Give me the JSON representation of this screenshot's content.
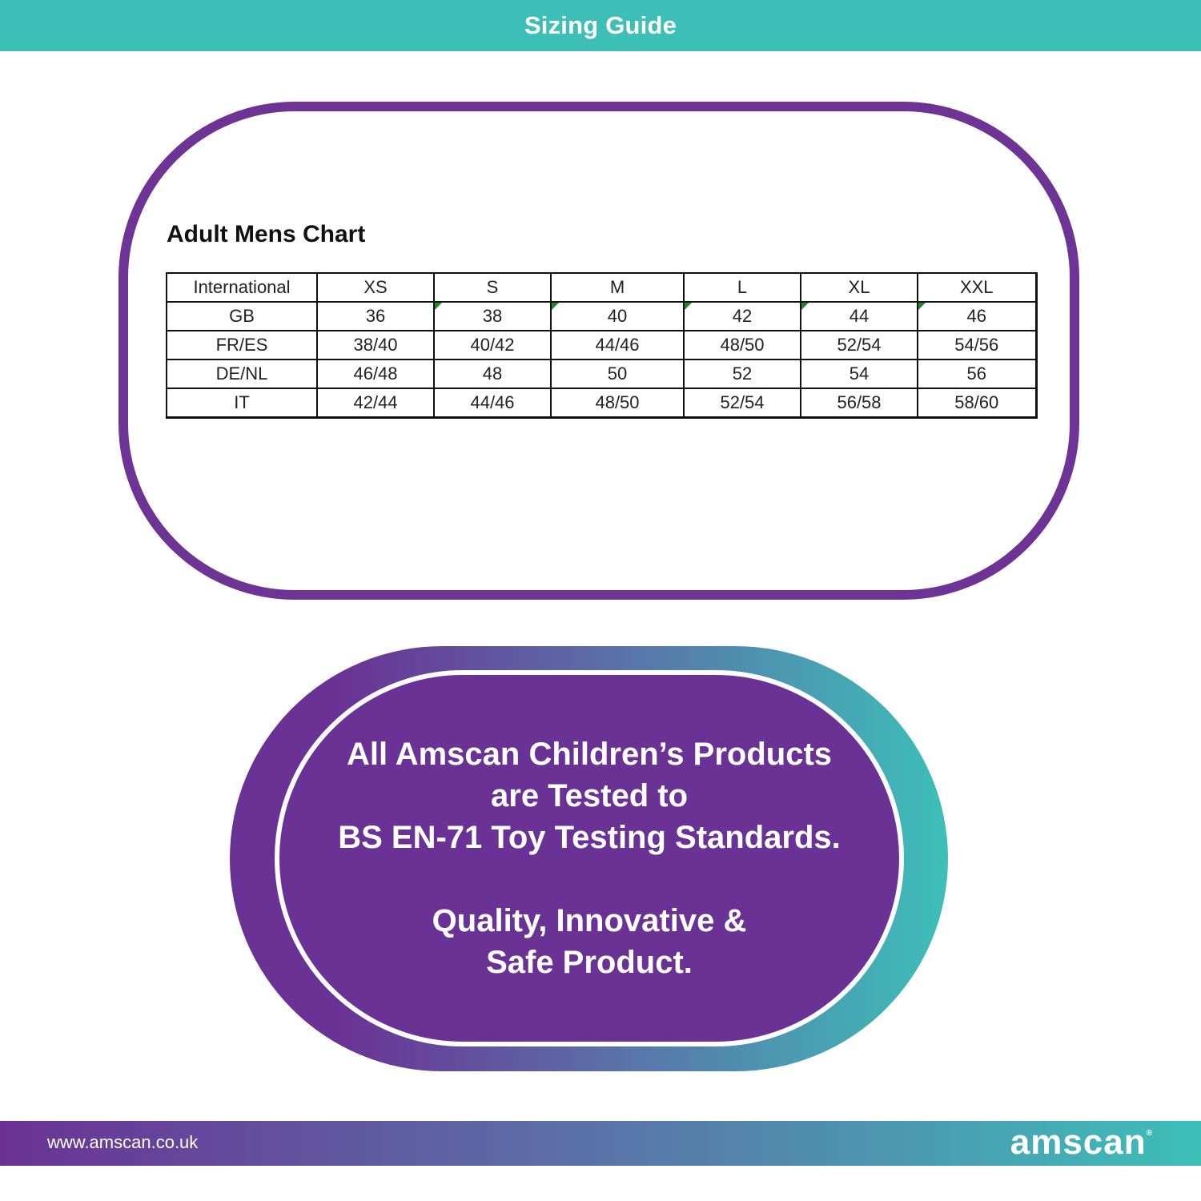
{
  "header": {
    "title": "Sizing Guide"
  },
  "chart": {
    "title": "Adult Mens Chart",
    "header_row": [
      "International",
      "XS",
      "S",
      "M",
      "L",
      "XL",
      "XXL"
    ],
    "rows": [
      [
        "GB",
        "36",
        "38",
        "40",
        "42",
        "44",
        "46"
      ],
      [
        "FR/ES",
        "38/40",
        "40/42",
        "44/46",
        "48/50",
        "52/54",
        "54/56"
      ],
      [
        "DE/NL",
        "46/48",
        "48",
        "50",
        "52",
        "54",
        "56"
      ],
      [
        "IT",
        "42/44",
        "44/46",
        "48/50",
        "52/54",
        "56/58",
        "58/60"
      ]
    ]
  },
  "message": {
    "line1": "All Amscan Children’s Products",
    "line2": "are Tested to",
    "line3": "BS EN-71 Toy Testing Standards.",
    "line4": "Quality, Innovative &",
    "line5": "Safe Product."
  },
  "footer": {
    "url": "www.amscan.co.uk",
    "logo": "amscan",
    "logo_mark": "®"
  },
  "colors": {
    "teal": "#3dbfb8",
    "purple": "#6a3294",
    "frame_purple": "#6d3495"
  }
}
